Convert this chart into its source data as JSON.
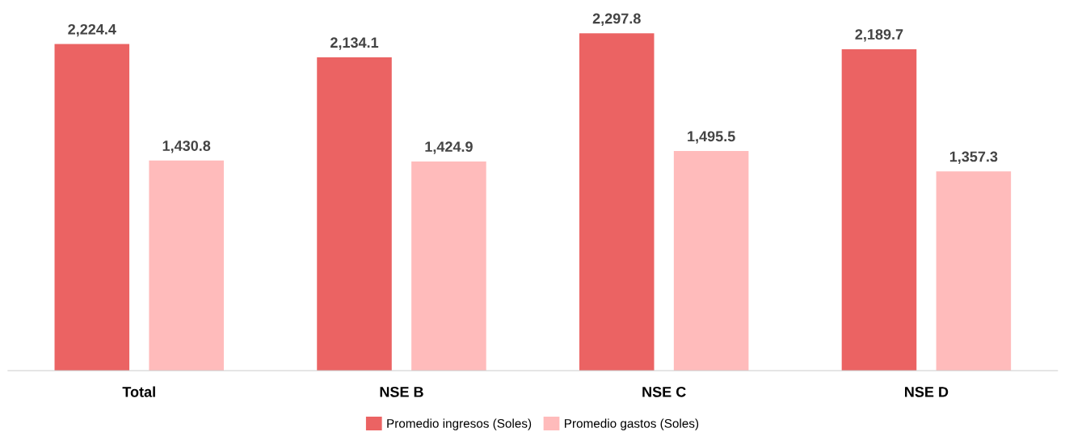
{
  "chart_data": {
    "type": "bar",
    "categories": [
      "Total",
      "NSE B",
      "NSE C",
      "NSE D"
    ],
    "series": [
      {
        "name": "Promedio ingresos (Soles)",
        "color": "#eb6363",
        "values": [
          2224.4,
          2134.1,
          2297.8,
          2189.7
        ],
        "value_labels": [
          "2,224.4",
          "2,134.1",
          "2,297.8",
          "2,189.7"
        ]
      },
      {
        "name": "Promedio gastos (Soles)",
        "color": "#ffbbbb",
        "values": [
          1430.8,
          1424.9,
          1495.5,
          1357.3
        ],
        "value_labels": [
          "1,430.8",
          "1,424.9",
          "1,495.5",
          "1,357.3"
        ]
      }
    ],
    "grid": false,
    "legend": "bottom"
  }
}
